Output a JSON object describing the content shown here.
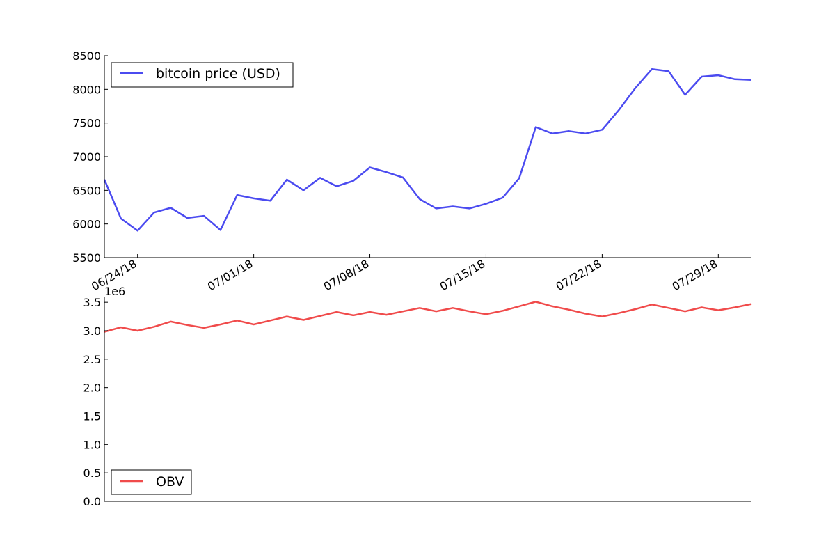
{
  "chart_data": [
    {
      "type": "line",
      "x": [
        "06/22/18",
        "06/23/18",
        "06/24/18",
        "06/25/18",
        "06/26/18",
        "06/27/18",
        "06/28/18",
        "06/29/18",
        "06/30/18",
        "07/01/18",
        "07/02/18",
        "07/03/18",
        "07/04/18",
        "07/05/18",
        "07/06/18",
        "07/07/18",
        "07/08/18",
        "07/09/18",
        "07/10/18",
        "07/11/18",
        "07/12/18",
        "07/13/18",
        "07/14/18",
        "07/15/18",
        "07/16/18",
        "07/17/18",
        "07/18/18",
        "07/19/18",
        "07/20/18",
        "07/21/18",
        "07/22/18",
        "07/23/18",
        "07/24/18",
        "07/25/18",
        "07/26/18",
        "07/27/18",
        "07/28/18",
        "07/29/18",
        "07/30/18",
        "07/31/18"
      ],
      "series": [
        {
          "name": "bitcoin price (USD)",
          "color": "#4b4bf0",
          "values": [
            6660,
            6080,
            5900,
            6170,
            6240,
            6090,
            6120,
            5910,
            6430,
            6380,
            6345,
            6660,
            6500,
            6685,
            6560,
            6640,
            6840,
            6770,
            6690,
            6370,
            6230,
            6260,
            6230,
            6300,
            6390,
            6680,
            7440,
            7345,
            7380,
            7345,
            7400,
            7690,
            8020,
            8300,
            8270,
            7920,
            8190,
            8210,
            8150,
            8140
          ]
        }
      ],
      "xticks": [
        "06/24/18",
        "07/01/18",
        "07/08/18",
        "07/15/18",
        "07/22/18",
        "07/29/18"
      ],
      "yticks": [
        "5500",
        "6000",
        "6500",
        "7000",
        "7500",
        "8000",
        "8500"
      ],
      "ylim": [
        5500,
        8500
      ],
      "legend": "top-left"
    },
    {
      "type": "line",
      "x": [
        "06/22/18",
        "06/23/18",
        "06/24/18",
        "06/25/18",
        "06/26/18",
        "06/27/18",
        "06/28/18",
        "06/29/18",
        "06/30/18",
        "07/01/18",
        "07/02/18",
        "07/03/18",
        "07/04/18",
        "07/05/18",
        "07/06/18",
        "07/07/18",
        "07/08/18",
        "07/09/18",
        "07/10/18",
        "07/11/18",
        "07/12/18",
        "07/13/18",
        "07/14/18",
        "07/15/18",
        "07/16/18",
        "07/17/18",
        "07/18/18",
        "07/19/18",
        "07/20/18",
        "07/21/18",
        "07/22/18",
        "07/23/18",
        "07/24/18",
        "07/25/18",
        "07/26/18",
        "07/27/18",
        "07/28/18",
        "07/29/18",
        "07/30/18",
        "07/31/18"
      ],
      "series": [
        {
          "name": "OBV",
          "color": "#f04b4b",
          "values": [
            2.98,
            3.06,
            3.0,
            3.07,
            3.16,
            3.1,
            3.05,
            3.11,
            3.18,
            3.11,
            3.18,
            3.25,
            3.19,
            3.26,
            3.33,
            3.27,
            3.33,
            3.28,
            3.34,
            3.4,
            3.34,
            3.4,
            3.34,
            3.29,
            3.35,
            3.43,
            3.51,
            3.43,
            3.37,
            3.3,
            3.25,
            3.31,
            3.38,
            3.46,
            3.4,
            3.34,
            3.41,
            3.36,
            3.41,
            3.47
          ]
        }
      ],
      "scale_label": "1e6",
      "yticks": [
        "0.0",
        "0.5",
        "1.0",
        "1.5",
        "2.0",
        "2.5",
        "3.0",
        "3.5"
      ],
      "ylim": [
        0.0,
        3.6
      ],
      "legend": "bottom-left"
    }
  ]
}
